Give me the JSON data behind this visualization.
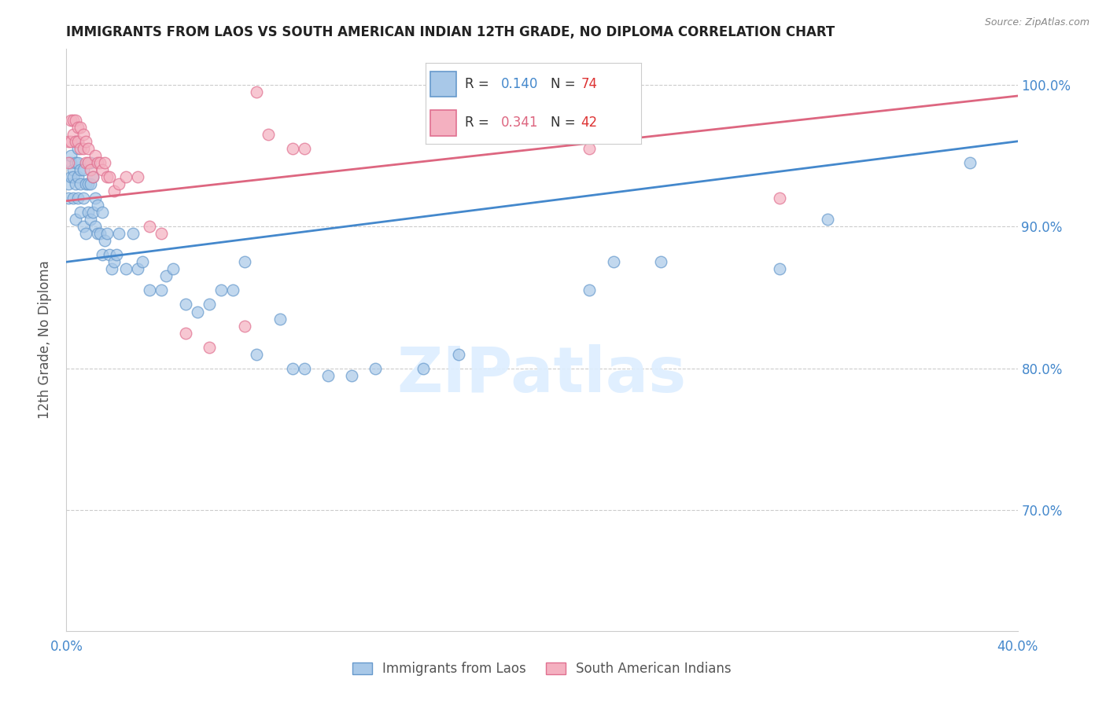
{
  "title": "IMMIGRANTS FROM LAOS VS SOUTH AMERICAN INDIAN 12TH GRADE, NO DIPLOMA CORRELATION CHART",
  "source": "Source: ZipAtlas.com",
  "ylabel": "12th Grade, No Diploma",
  "legend_blue_r": "0.140",
  "legend_blue_n": "74",
  "legend_pink_r": "0.341",
  "legend_pink_n": "42",
  "legend_label_blue": "Immigrants from Laos",
  "legend_label_pink": "South American Indians",
  "blue_color": "#a8c8e8",
  "pink_color": "#f4b0c0",
  "blue_edge_color": "#6699cc",
  "pink_edge_color": "#e07090",
  "blue_line_color": "#4488cc",
  "pink_line_color": "#dd6680",
  "blue_r_color": "#4488cc",
  "pink_r_color": "#dd6680",
  "n_color": "#dd3333",
  "watermark_color": "#ddeeff",
  "blue_scatter_x": [
    0.001,
    0.001,
    0.002,
    0.002,
    0.002,
    0.003,
    0.003,
    0.003,
    0.004,
    0.004,
    0.004,
    0.004,
    0.005,
    0.005,
    0.005,
    0.005,
    0.006,
    0.006,
    0.006,
    0.007,
    0.007,
    0.007,
    0.008,
    0.008,
    0.009,
    0.009,
    0.01,
    0.01,
    0.01,
    0.011,
    0.011,
    0.012,
    0.012,
    0.013,
    0.013,
    0.014,
    0.015,
    0.015,
    0.016,
    0.017,
    0.018,
    0.019,
    0.02,
    0.021,
    0.022,
    0.025,
    0.028,
    0.03,
    0.032,
    0.035,
    0.04,
    0.042,
    0.045,
    0.05,
    0.055,
    0.06,
    0.065,
    0.07,
    0.075,
    0.08,
    0.09,
    0.095,
    0.1,
    0.11,
    0.12,
    0.13,
    0.15,
    0.165,
    0.22,
    0.23,
    0.25,
    0.3,
    0.32,
    0.38
  ],
  "blue_scatter_y": [
    0.92,
    0.93,
    0.935,
    0.945,
    0.95,
    0.94,
    0.92,
    0.935,
    0.905,
    0.93,
    0.945,
    0.96,
    0.92,
    0.935,
    0.945,
    0.955,
    0.91,
    0.93,
    0.94,
    0.9,
    0.92,
    0.94,
    0.895,
    0.93,
    0.91,
    0.93,
    0.905,
    0.93,
    0.945,
    0.91,
    0.935,
    0.9,
    0.92,
    0.895,
    0.915,
    0.895,
    0.88,
    0.91,
    0.89,
    0.895,
    0.88,
    0.87,
    0.875,
    0.88,
    0.895,
    0.87,
    0.895,
    0.87,
    0.875,
    0.855,
    0.855,
    0.865,
    0.87,
    0.845,
    0.84,
    0.845,
    0.855,
    0.855,
    0.875,
    0.81,
    0.835,
    0.8,
    0.8,
    0.795,
    0.795,
    0.8,
    0.8,
    0.81,
    0.855,
    0.875,
    0.875,
    0.87,
    0.905,
    0.945
  ],
  "pink_scatter_x": [
    0.001,
    0.001,
    0.002,
    0.002,
    0.003,
    0.003,
    0.004,
    0.004,
    0.005,
    0.005,
    0.006,
    0.006,
    0.007,
    0.007,
    0.008,
    0.008,
    0.009,
    0.009,
    0.01,
    0.011,
    0.012,
    0.013,
    0.014,
    0.015,
    0.016,
    0.017,
    0.018,
    0.02,
    0.022,
    0.025,
    0.03,
    0.035,
    0.04,
    0.05,
    0.06,
    0.075,
    0.08,
    0.085,
    0.095,
    0.1,
    0.22,
    0.3
  ],
  "pink_scatter_y": [
    0.945,
    0.96,
    0.96,
    0.975,
    0.965,
    0.975,
    0.96,
    0.975,
    0.96,
    0.97,
    0.955,
    0.97,
    0.955,
    0.965,
    0.945,
    0.96,
    0.945,
    0.955,
    0.94,
    0.935,
    0.95,
    0.945,
    0.945,
    0.94,
    0.945,
    0.935,
    0.935,
    0.925,
    0.93,
    0.935,
    0.935,
    0.9,
    0.895,
    0.825,
    0.815,
    0.83,
    0.995,
    0.965,
    0.955,
    0.955,
    0.955,
    0.92
  ],
  "xlim": [
    0.0,
    0.4
  ],
  "ylim": [
    0.615,
    1.025
  ],
  "blue_line_x": [
    0.0,
    0.4
  ],
  "blue_line_y": [
    0.875,
    0.96
  ],
  "pink_line_x": [
    0.0,
    0.4
  ],
  "pink_line_y": [
    0.918,
    0.992
  ],
  "ytick_vals": [
    0.7,
    0.8,
    0.9,
    1.0
  ],
  "ytick_labels": [
    "70.0%",
    "80.0%",
    "90.0%",
    "100.0%"
  ],
  "xtick_vals": [
    0.0,
    0.05,
    0.1,
    0.15,
    0.2,
    0.25,
    0.3,
    0.35,
    0.4
  ],
  "xtick_show": [
    "0.0%",
    "",
    "",
    "",
    "",
    "",
    "",
    "",
    "40.0%"
  ]
}
